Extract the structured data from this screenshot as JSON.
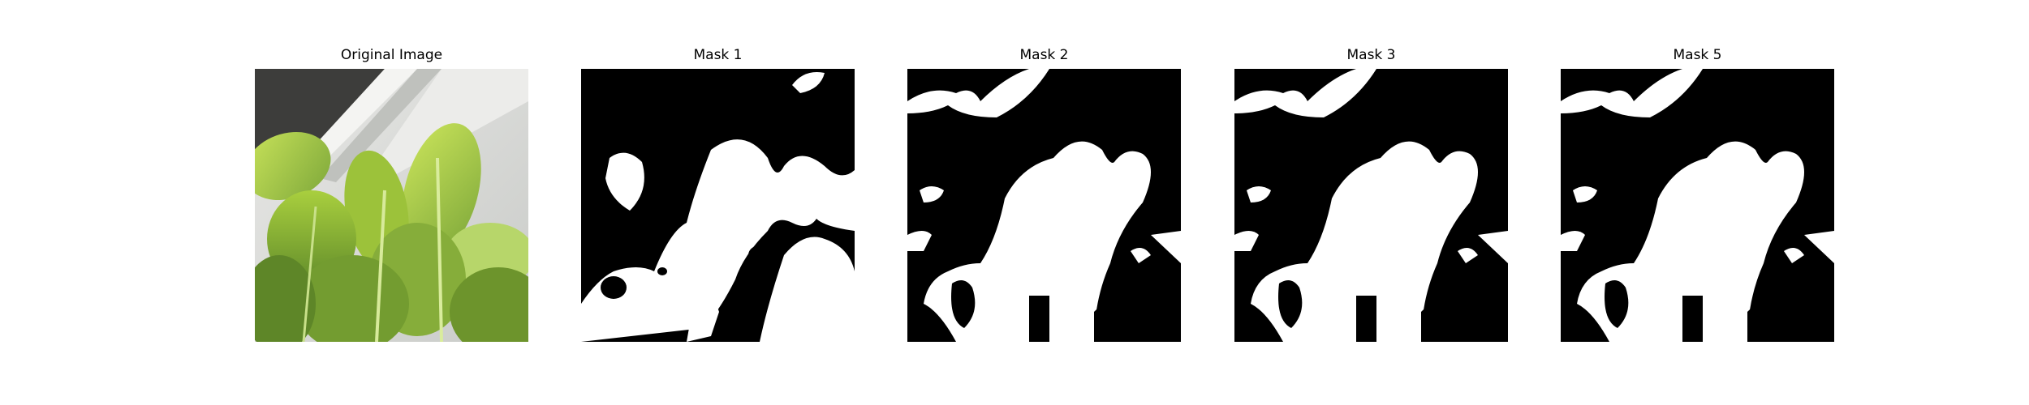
{
  "panels": [
    {
      "title": "Original Image"
    },
    {
      "title": "Mask 1"
    },
    {
      "title": "Mask 2"
    },
    {
      "title": "Mask 3"
    },
    {
      "title": "Mask 5"
    }
  ],
  "colors": {
    "mask_background": "#000000",
    "mask_foreground": "#ffffff",
    "leaf_light": "#b6d84a",
    "leaf_dark": "#6f9a2c",
    "wall": "#d9dad8",
    "soil": "#3a3a38"
  }
}
